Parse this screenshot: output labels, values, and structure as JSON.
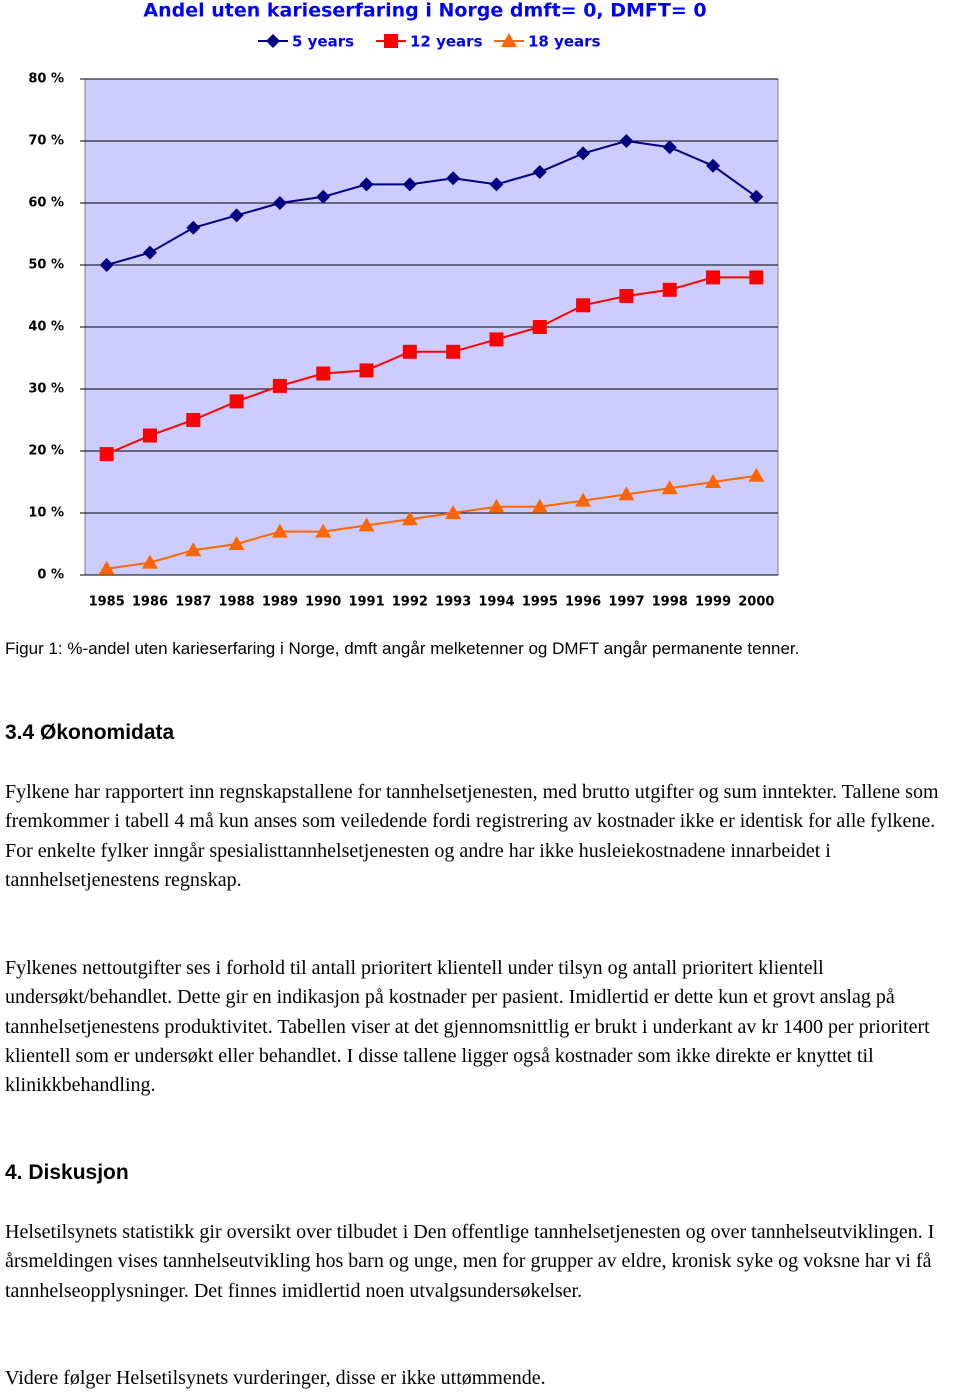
{
  "chart_data": {
    "type": "line",
    "title": "Andel uten karieserfaring i Norge dmft= 0, DMFT= 0",
    "categories": [
      "1985",
      "1986",
      "1987",
      "1988",
      "1989",
      "1990",
      "1991",
      "1992",
      "1993",
      "1994",
      "1995",
      "1996",
      "1997",
      "1998",
      "1999",
      "2000"
    ],
    "series": [
      {
        "name": "5 years",
        "color": "#000080",
        "marker": "diamond",
        "values": [
          50,
          52,
          56,
          58,
          60,
          61,
          63,
          63,
          64,
          63,
          65,
          68,
          70,
          69,
          66,
          61
        ]
      },
      {
        "name": "12 years",
        "color": "#ff0000",
        "marker": "square",
        "values": [
          19.5,
          22.5,
          25,
          28,
          30.5,
          32.5,
          33,
          36,
          36,
          38,
          40,
          43.5,
          45,
          46,
          48,
          48
        ]
      },
      {
        "name": "18 years",
        "color": "#ff6600",
        "marker": "triangle",
        "values": [
          1,
          2,
          4,
          5,
          7,
          7,
          8,
          9,
          10,
          11,
          11,
          12,
          13,
          14,
          15,
          16
        ]
      }
    ],
    "ylim": [
      0,
      80
    ],
    "yticks": [
      {
        "value": 0,
        "label": "0 %"
      },
      {
        "value": 10,
        "label": "10 %"
      },
      {
        "value": 20,
        "label": "20 %"
      },
      {
        "value": 30,
        "label": "30 %"
      },
      {
        "value": 40,
        "label": "40 %"
      },
      {
        "value": 50,
        "label": "50 %"
      },
      {
        "value": 60,
        "label": "60 %"
      },
      {
        "value": 70,
        "label": "70 %"
      },
      {
        "value": 80,
        "label": "80 %"
      }
    ],
    "grid": true,
    "background": "#ccccff"
  },
  "document": {
    "caption": "Figur 1: %-andel uten karieserfaring i Norge, dmft angår melketenner og DMFT angår permanente tenner.",
    "sections": [
      {
        "heading": "3.4 Økonomidata",
        "paragraphs": [
          "Fylkene har rapportert inn regnskapstallene for tannhelsetjenesten, med brutto utgifter og sum inntekter. Tallene som fremkommer i tabell 4 må kun anses som veiledende fordi registrering av kostnader ikke er identisk for alle fylkene. For enkelte fylker inngår spesialisttannhelsetjenesten og andre har ikke husleiekostnadene innarbeidet i tannhelsetjenestens regnskap.",
          "Fylkenes nettoutgifter ses i forhold til antall prioritert klientell under tilsyn og antall prioritert klientell undersøkt/behandlet. Dette gir en indikasjon på kostnader per pasient. Imidlertid er dette kun et grovt anslag på tannhelsetjenestens produktivitet. Tabellen viser at det gjennomsnittlig er brukt i underkant av kr 1400 per prioritert klientell som er undersøkt eller behandlet. I disse tallene ligger også kostnader som ikke direkte er knyttet til klinikkbehandling."
        ]
      },
      {
        "heading": "4. Diskusjon",
        "paragraphs": [
          "Helsetilsynets statistikk gir oversikt over tilbudet i Den offentlige tannhelsetjenesten og over tannhelseutviklingen. I årsmeldingen vises tannhelseutvikling hos barn og unge, men for grupper av eldre, kronisk syke og voksne har vi få tannhelseopplysninger. Det finnes imidlertid noen utvalgsundersøkelser.",
          "Videre følger Helsetilsynets vurderinger, disse er ikke uttømmende."
        ]
      }
    ]
  }
}
